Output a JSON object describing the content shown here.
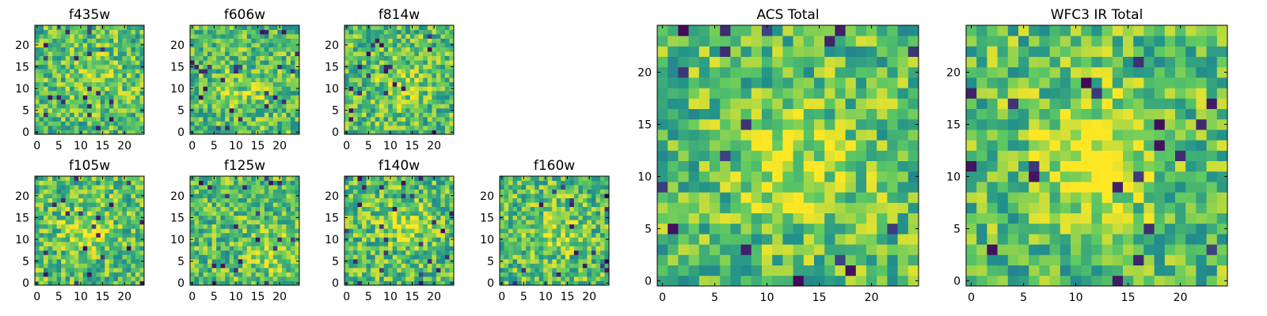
{
  "chart_data": [
    {
      "type": "heatmap",
      "title": "f435w",
      "grid": [
        25,
        25
      ],
      "xlim": [
        -0.5,
        24.5
      ],
      "ylim": [
        -0.5,
        24.5
      ],
      "xticks": [
        "0",
        "5",
        "10",
        "15",
        "20"
      ],
      "yticks": [
        "0",
        "5",
        "10",
        "15",
        "20"
      ],
      "colormap": "viridis",
      "seed": 11,
      "blob": {
        "x": 14,
        "y": 13,
        "strength": 0.12
      }
    },
    {
      "type": "heatmap",
      "title": "f606w",
      "grid": [
        25,
        25
      ],
      "xlim": [
        -0.5,
        24.5
      ],
      "ylim": [
        -0.5,
        24.5
      ],
      "xticks": [
        "0",
        "5",
        "10",
        "15",
        "20"
      ],
      "yticks": [
        "0",
        "5",
        "10",
        "15",
        "20"
      ],
      "colormap": "viridis",
      "seed": 23,
      "blob": {
        "x": 11,
        "y": 9,
        "strength": 0.12
      }
    },
    {
      "type": "heatmap",
      "title": "f814w",
      "grid": [
        25,
        25
      ],
      "xlim": [
        -0.5,
        24.5
      ],
      "ylim": [
        -0.5,
        24.5
      ],
      "xticks": [
        "0",
        "5",
        "10",
        "15",
        "20"
      ],
      "yticks": [
        "0",
        "5",
        "10",
        "15",
        "20"
      ],
      "colormap": "viridis",
      "seed": 37,
      "blob": {
        "x": 13,
        "y": 11,
        "strength": 0.12
      }
    },
    {
      "type": "heatmap",
      "title": "f105w",
      "grid": [
        25,
        25
      ],
      "xlim": [
        -0.5,
        24.5
      ],
      "ylim": [
        -0.5,
        24.5
      ],
      "xticks": [
        "0",
        "5",
        "10",
        "15",
        "20"
      ],
      "yticks": [
        "0",
        "5",
        "10",
        "15",
        "20"
      ],
      "colormap": "viridis",
      "seed": 41,
      "blob": {
        "x": 11,
        "y": 12,
        "strength": 0.18
      }
    },
    {
      "type": "heatmap",
      "title": "f125w",
      "grid": [
        25,
        25
      ],
      "xlim": [
        -0.5,
        24.5
      ],
      "ylim": [
        -0.5,
        24.5
      ],
      "xticks": [
        "0",
        "5",
        "10",
        "15",
        "20"
      ],
      "yticks": [
        "0",
        "5",
        "10",
        "15",
        "20"
      ],
      "colormap": "viridis",
      "seed": 53,
      "blob": {
        "x": 19,
        "y": 7,
        "strength": 0.18
      }
    },
    {
      "type": "heatmap",
      "title": "f140w",
      "grid": [
        25,
        25
      ],
      "xlim": [
        -0.5,
        24.5
      ],
      "ylim": [
        -0.5,
        24.5
      ],
      "xticks": [
        "0",
        "5",
        "10",
        "15",
        "20"
      ],
      "yticks": [
        "0",
        "5",
        "10",
        "15",
        "20"
      ],
      "colormap": "viridis",
      "seed": 67,
      "blob": {
        "x": 13,
        "y": 14,
        "strength": 0.18
      }
    },
    {
      "type": "heatmap",
      "title": "f160w",
      "grid": [
        25,
        25
      ],
      "xlim": [
        -0.5,
        24.5
      ],
      "ylim": [
        -0.5,
        24.5
      ],
      "xticks": [
        "0",
        "5",
        "10",
        "15",
        "20"
      ],
      "yticks": [
        "0",
        "5",
        "10",
        "15",
        "20"
      ],
      "colormap": "viridis",
      "seed": 79,
      "blob": {
        "x": 12,
        "y": 12,
        "strength": 0.15
      }
    },
    {
      "type": "heatmap",
      "title": "ACS Total",
      "grid": [
        25,
        25
      ],
      "xlim": [
        -0.5,
        24.5
      ],
      "ylim": [
        -0.5,
        24.5
      ],
      "xticks": [
        "0",
        "5",
        "10",
        "15",
        "20"
      ],
      "yticks": [
        "0",
        "5",
        "10",
        "15",
        "20"
      ],
      "colormap": "viridis",
      "seed": 97,
      "blob": {
        "x": 13,
        "y": 11,
        "strength": 0.22
      }
    },
    {
      "type": "heatmap",
      "title": "WFC3 IR Total",
      "grid": [
        25,
        25
      ],
      "xlim": [
        -0.5,
        24.5
      ],
      "ylim": [
        -0.5,
        24.5
      ],
      "xticks": [
        "0",
        "5",
        "10",
        "15",
        "20"
      ],
      "yticks": [
        "0",
        "5",
        "10",
        "15",
        "20"
      ],
      "colormap": "viridis",
      "seed": 131,
      "blob": {
        "x": 12,
        "y": 12,
        "strength": 0.35
      }
    }
  ]
}
